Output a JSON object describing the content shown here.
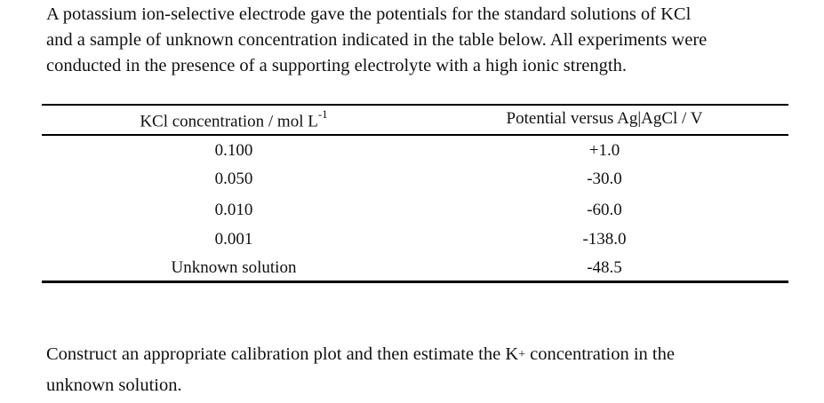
{
  "intro": {
    "line1": "A potassium ion-selective electrode gave the potentials for the standard solutions of KCl",
    "line2": "and a sample of unknown concentration indicated in the table below.  All experiments were",
    "line3": "conducted in the presence of a supporting electrolyte with a high ionic strength."
  },
  "table": {
    "header": {
      "col1_text": "KCl concentration / mol L",
      "col1_sup": "-1",
      "col2_text": "Potential versus Ag|AgCl / V"
    },
    "rows": [
      {
        "concentration": "0.100",
        "potential": "+1.0"
      },
      {
        "concentration": "0.050",
        "potential": "-30.0"
      },
      {
        "concentration": "0.010",
        "potential": "-60.0"
      },
      {
        "concentration": "0.001",
        "potential": "-138.0"
      },
      {
        "concentration": "Unknown solution",
        "potential": "-48.5"
      }
    ]
  },
  "question": {
    "line1_a": "Construct an appropriate calibration plot and then estimate the K",
    "line1_sup": "+",
    "line1_b": " concentration in the",
    "line2": "unknown solution."
  }
}
